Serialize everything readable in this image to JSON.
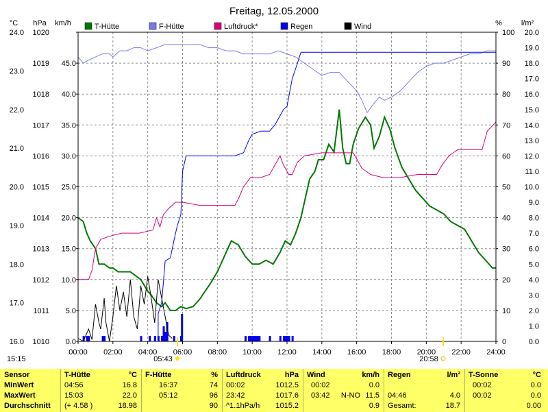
{
  "chart_data": {
    "type": "line",
    "title": "Freitag, 12.05.2000",
    "time": "15:15",
    "x": {
      "ticks": [
        "00:00",
        "02:00",
        "04:00",
        "06:00",
        "08:00",
        "10:00",
        "12:00",
        "14:00",
        "16:00",
        "18:00",
        "20:00",
        "22:00",
        "24:00"
      ],
      "range_h": [
        0,
        24
      ],
      "sunrise": "05:43",
      "sunset": "20:58"
    },
    "axes": {
      "temp": {
        "unit": "°C",
        "ticks": [
          "16.0",
          "17.0",
          "18.0",
          "19.0",
          "20.0",
          "21.0",
          "22.0",
          "23.0",
          "24.0"
        ],
        "range": [
          16,
          24
        ]
      },
      "press": {
        "unit": "hPa",
        "ticks": [
          "1010",
          "1011",
          "1012",
          "1013",
          "1014",
          "1015",
          "1016",
          "1017",
          "1018",
          "1019",
          "1020"
        ],
        "range": [
          1010,
          1020
        ]
      },
      "wind": {
        "unit": "km/h",
        "ticks": [
          "0.0",
          "5.0",
          "10.0",
          "15.0",
          "20.0",
          "25.0",
          "30.0",
          "35.0",
          "40.0",
          "45.0"
        ],
        "range": [
          0,
          50
        ]
      },
      "hum": {
        "unit": "%",
        "ticks": [
          "0",
          "10",
          "20",
          "30",
          "40",
          "50",
          "60",
          "70",
          "80",
          "90",
          "100"
        ],
        "range": [
          0,
          100
        ]
      },
      "rain": {
        "unit": "l/m²",
        "ticks": [
          "0.0",
          "1.0",
          "2.0",
          "3.0",
          "4.0",
          "5.0",
          "6.0",
          "7.0",
          "8.0",
          "9.0",
          "10.0",
          "11.0",
          "12.0",
          "13.0",
          "14.0",
          "15.0",
          "16.0",
          "17.0",
          "18.0",
          "19.0",
          "20.0"
        ],
        "range": [
          0,
          20
        ]
      }
    },
    "legend": [
      {
        "name": "T-Hütte",
        "color": "#007700"
      },
      {
        "name": "F-Hütte",
        "color": "#7a7aee"
      },
      {
        "name": "Luftdruck*",
        "color": "#dd0077"
      },
      {
        "name": "Regen",
        "color": "#0000ee"
      },
      {
        "name": "Wind",
        "color": "#000000"
      }
    ],
    "series": [
      {
        "key": "temp",
        "color": "#007700",
        "axis": "temp",
        "points": [
          [
            0.0,
            19.2
          ],
          [
            0.3,
            19.1
          ],
          [
            0.5,
            18.8
          ],
          [
            0.7,
            18.6
          ],
          [
            1.0,
            18.4
          ],
          [
            1.2,
            18.0
          ],
          [
            1.5,
            18.0
          ],
          [
            1.8,
            17.9
          ],
          [
            2.0,
            17.9
          ],
          [
            2.3,
            17.8
          ],
          [
            2.6,
            17.8
          ],
          [
            3.0,
            17.8
          ],
          [
            3.3,
            17.7
          ],
          [
            3.6,
            17.6
          ],
          [
            4.0,
            17.3
          ],
          [
            4.2,
            17.2
          ],
          [
            4.5,
            17.0
          ],
          [
            4.8,
            16.9
          ],
          [
            5.0,
            17.0
          ],
          [
            5.3,
            16.8
          ],
          [
            5.6,
            16.8
          ],
          [
            5.9,
            16.9
          ],
          [
            6.2,
            16.85
          ],
          [
            6.6,
            16.9
          ],
          [
            7.0,
            17.1
          ],
          [
            7.3,
            17.3
          ],
          [
            7.6,
            17.5
          ],
          [
            8.0,
            17.8
          ],
          [
            8.3,
            18.1
          ],
          [
            8.6,
            18.4
          ],
          [
            8.8,
            18.6
          ],
          [
            9.2,
            18.5
          ],
          [
            9.6,
            18.2
          ],
          [
            10.0,
            18.0
          ],
          [
            10.4,
            18.0
          ],
          [
            10.8,
            18.1
          ],
          [
            11.2,
            18.0
          ],
          [
            11.6,
            18.3
          ],
          [
            11.9,
            18.6
          ],
          [
            12.2,
            18.5
          ],
          [
            12.5,
            18.8
          ],
          [
            12.8,
            19.2
          ],
          [
            13.0,
            19.6
          ],
          [
            13.3,
            20.2
          ],
          [
            13.6,
            20.4
          ],
          [
            13.8,
            20.7
          ],
          [
            14.1,
            20.7
          ],
          [
            14.4,
            21.1
          ],
          [
            14.7,
            20.9
          ],
          [
            15.0,
            22.0
          ],
          [
            15.2,
            21.0
          ],
          [
            15.4,
            20.6
          ],
          [
            15.6,
            20.6
          ],
          [
            15.8,
            21.1
          ],
          [
            16.1,
            21.5
          ],
          [
            16.5,
            21.8
          ],
          [
            16.8,
            21.6
          ],
          [
            17.0,
            21.0
          ],
          [
            17.3,
            21.3
          ],
          [
            17.6,
            21.8
          ],
          [
            17.9,
            21.5
          ],
          [
            18.2,
            21.0
          ],
          [
            18.6,
            20.5
          ],
          [
            19.0,
            20.2
          ],
          [
            19.4,
            19.9
          ],
          [
            19.8,
            19.7
          ],
          [
            20.2,
            19.5
          ],
          [
            20.6,
            19.4
          ],
          [
            21.0,
            19.3
          ],
          [
            21.4,
            19.1
          ],
          [
            21.8,
            19.0
          ],
          [
            22.2,
            18.9
          ],
          [
            22.6,
            18.6
          ],
          [
            23.0,
            18.3
          ],
          [
            23.4,
            18.1
          ],
          [
            23.8,
            17.9
          ],
          [
            24.0,
            17.9
          ]
        ]
      },
      {
        "key": "hum",
        "color": "#7a7aee",
        "axis": "hum",
        "points": [
          [
            0.0,
            92
          ],
          [
            0.3,
            90
          ],
          [
            0.6,
            91
          ],
          [
            1.0,
            92
          ],
          [
            1.4,
            93
          ],
          [
            1.8,
            93
          ],
          [
            2.0,
            92
          ],
          [
            2.4,
            94
          ],
          [
            2.8,
            94
          ],
          [
            3.2,
            95
          ],
          [
            3.6,
            95
          ],
          [
            4.0,
            94
          ],
          [
            4.5,
            95
          ],
          [
            5.0,
            96
          ],
          [
            5.5,
            96
          ],
          [
            6.0,
            96
          ],
          [
            6.5,
            96
          ],
          [
            7.0,
            96
          ],
          [
            7.5,
            95
          ],
          [
            8.0,
            95
          ],
          [
            8.5,
            94
          ],
          [
            9.0,
            94
          ],
          [
            9.5,
            93
          ],
          [
            10.0,
            93
          ],
          [
            10.5,
            93
          ],
          [
            11.0,
            93
          ],
          [
            11.5,
            94
          ],
          [
            12.0,
            93
          ],
          [
            12.5,
            92
          ],
          [
            13.0,
            90
          ],
          [
            13.5,
            88
          ],
          [
            14.0,
            86
          ],
          [
            14.5,
            87
          ],
          [
            15.0,
            87
          ],
          [
            15.5,
            84
          ],
          [
            16.0,
            81
          ],
          [
            16.3,
            78
          ],
          [
            16.6,
            74
          ],
          [
            17.0,
            77
          ],
          [
            17.3,
            79
          ],
          [
            17.6,
            78
          ],
          [
            18.0,
            79
          ],
          [
            18.5,
            81
          ],
          [
            19.0,
            84
          ],
          [
            19.5,
            87
          ],
          [
            20.0,
            89
          ],
          [
            20.5,
            90
          ],
          [
            21.0,
            90
          ],
          [
            21.5,
            91
          ],
          [
            22.0,
            92
          ],
          [
            22.5,
            93
          ],
          [
            23.0,
            93
          ],
          [
            23.5,
            94
          ],
          [
            24.0,
            94
          ]
        ]
      },
      {
        "key": "press",
        "color": "#dd0077",
        "axis": "press",
        "points": [
          [
            0.0,
            1012.0
          ],
          [
            0.6,
            1012.0
          ],
          [
            0.8,
            1012.3
          ],
          [
            1.0,
            1013.0
          ],
          [
            1.3,
            1013.3
          ],
          [
            1.8,
            1013.4
          ],
          [
            2.5,
            1013.5
          ],
          [
            3.5,
            1013.5
          ],
          [
            4.3,
            1013.6
          ],
          [
            4.5,
            1014.0
          ],
          [
            4.7,
            1013.7
          ],
          [
            4.9,
            1014.1
          ],
          [
            5.2,
            1014.3
          ],
          [
            5.6,
            1014.5
          ],
          [
            6.0,
            1014.5
          ],
          [
            7.0,
            1014.4
          ],
          [
            8.0,
            1014.4
          ],
          [
            9.0,
            1014.4
          ],
          [
            9.2,
            1014.6
          ],
          [
            9.5,
            1015.0
          ],
          [
            9.9,
            1015.3
          ],
          [
            10.5,
            1015.3
          ],
          [
            11.0,
            1015.4
          ],
          [
            11.4,
            1015.8
          ],
          [
            11.6,
            1016.0
          ],
          [
            11.8,
            1015.7
          ],
          [
            12.1,
            1015.4
          ],
          [
            12.3,
            1015.4
          ],
          [
            12.6,
            1015.8
          ],
          [
            13.0,
            1016.0
          ],
          [
            14.0,
            1016.1
          ],
          [
            15.0,
            1016.1
          ],
          [
            15.8,
            1016.1
          ],
          [
            16.0,
            1015.9
          ],
          [
            16.3,
            1015.6
          ],
          [
            16.8,
            1015.4
          ],
          [
            17.5,
            1015.3
          ],
          [
            18.5,
            1015.3
          ],
          [
            19.5,
            1015.4
          ],
          [
            20.6,
            1015.4
          ],
          [
            20.9,
            1015.7
          ],
          [
            21.3,
            1016.0
          ],
          [
            21.8,
            1016.2
          ],
          [
            23.2,
            1016.2
          ],
          [
            23.5,
            1016.8
          ],
          [
            24.0,
            1017.1
          ]
        ]
      },
      {
        "key": "rain_sum",
        "color": "#0000ee",
        "axis": "rain",
        "points": [
          [
            0.0,
            0.0
          ],
          [
            4.6,
            0.0
          ],
          [
            4.6,
            1.8
          ],
          [
            4.8,
            2.5
          ],
          [
            5.0,
            5.2
          ],
          [
            5.3,
            5.4
          ],
          [
            5.5,
            6.5
          ],
          [
            5.7,
            7.5
          ],
          [
            5.9,
            8.2
          ],
          [
            6.0,
            11.0
          ],
          [
            6.2,
            12.0
          ],
          [
            9.0,
            12.0
          ],
          [
            9.5,
            12.2
          ],
          [
            9.8,
            13.0
          ],
          [
            10.0,
            13.4
          ],
          [
            10.5,
            13.6
          ],
          [
            11.0,
            13.6
          ],
          [
            11.3,
            14.0
          ],
          [
            11.8,
            15.0
          ],
          [
            12.0,
            15.2
          ],
          [
            12.3,
            17.0
          ],
          [
            12.6,
            18.0
          ],
          [
            12.8,
            18.7
          ],
          [
            24.0,
            18.7
          ]
        ]
      },
      {
        "key": "wind",
        "color": "#000000",
        "axis": "wind",
        "points": [
          [
            0.0,
            0.5
          ],
          [
            0.3,
            0.0
          ],
          [
            0.6,
            2.0
          ],
          [
            0.8,
            0.3
          ],
          [
            1.0,
            6.0
          ],
          [
            1.2,
            3.0
          ],
          [
            1.3,
            2.0
          ],
          [
            1.5,
            7.0
          ],
          [
            1.6,
            3.0
          ],
          [
            1.8,
            0.0
          ],
          [
            2.0,
            4.0
          ],
          [
            2.2,
            9.0
          ],
          [
            2.4,
            5.0
          ],
          [
            2.6,
            8.0
          ],
          [
            2.8,
            4.0
          ],
          [
            3.0,
            10.0
          ],
          [
            3.2,
            4.0
          ],
          [
            3.4,
            2.0
          ],
          [
            3.6,
            9.0
          ],
          [
            3.8,
            6.0
          ],
          [
            4.0,
            10.5
          ],
          [
            4.2,
            7.0
          ],
          [
            4.4,
            3.0
          ],
          [
            4.6,
            10.0
          ],
          [
            4.8,
            7.0
          ],
          [
            5.0,
            4.0
          ],
          [
            5.2,
            1.0
          ],
          [
            5.4,
            0.5
          ]
        ]
      }
    ],
    "rain_bars": [
      0.3,
      0.5,
      0.6,
      1.4,
      1.5,
      3.6,
      4.1,
      4.4,
      4.6,
      4.8,
      4.9,
      5.0,
      5.1,
      5.5,
      5.9,
      9.6,
      9.8,
      9.9,
      10.0,
      10.1,
      10.2,
      10.3,
      10.4,
      11.0,
      11.6,
      11.8,
      11.9,
      12.0,
      12.1,
      12.3
    ]
  },
  "stats": {
    "headers": {
      "sensor": "Sensor",
      "t": "T-Hütte",
      "t_unit": "°C",
      "f": "F-Hütte",
      "f_unit": "%",
      "l": "Luftdruck",
      "l_unit": "hPa",
      "w": "Wind",
      "w_unit": "km/h",
      "r": "Regen",
      "r_unit": "l/m²",
      "s": "T-Sonne",
      "s_unit": "°C"
    },
    "rows": [
      {
        "label": "MinWert",
        "t_time": "04:56",
        "t_val": "16.8",
        "f_time": "16:37",
        "f_val": "74",
        "l_time": "00:02",
        "l_val": "1012.5",
        "w_time": "00:02",
        "w_dir": "",
        "w_val": "0.0",
        "r_time": "",
        "r_val": "",
        "s_time": "00:02",
        "s_val": "0.0"
      },
      {
        "label": "MaxWert",
        "t_time": "15:03",
        "t_val": "22.0",
        "f_time": "05:12",
        "f_val": "96",
        "l_time": "23:42",
        "l_val": "1017.6",
        "w_time": "03:42",
        "w_dir": "N-NO",
        "w_val": "11.5",
        "r_time": "04:46",
        "r_val": "4.0",
        "s_time": "00:02",
        "s_val": "0.0"
      },
      {
        "label": "Durchschnitt",
        "t_time": "(+ 4.58 )",
        "t_val": "18.98",
        "f_time": "",
        "f_val": "90",
        "l_time": "^1.1hPa/h",
        "l_val": "1015.2",
        "w_time": "",
        "w_dir": "",
        "w_val": "0.9",
        "r_time": "Gesamt:",
        "r_val": "18.7",
        "s_time": "",
        "s_val": "0.00"
      }
    ]
  }
}
